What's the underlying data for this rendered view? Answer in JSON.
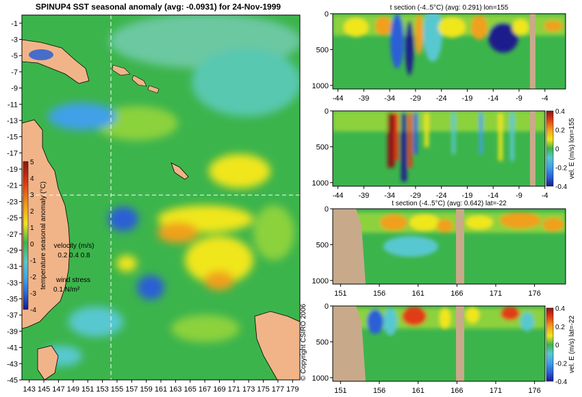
{
  "colors": {
    "land": "#f0b488",
    "section_land": "#c8aa8a",
    "grid": "#ffffff",
    "scale": [
      "#1a1a8c",
      "#2a5fd6",
      "#3fa0e8",
      "#58c8d0",
      "#3cb44c",
      "#8cd23c",
      "#f0e61e",
      "#f0a01e",
      "#e03c14",
      "#8c1414"
    ]
  },
  "chart_data": [
    {
      "type": "heatmap",
      "name": "map",
      "title": "SPINUP4 SST seasonal anomaly (avg: -0.0931) for 24-Nov-1999",
      "x_ticks": [
        "143",
        "145",
        "147",
        "149",
        "151",
        "153",
        "155",
        "157",
        "159",
        "161",
        "163",
        "165",
        "167",
        "169",
        "171",
        "173",
        "175",
        "177",
        "179"
      ],
      "y_ticks": [
        "-1",
        "-3",
        "-5",
        "-7",
        "-9",
        "-11",
        "-13",
        "-15",
        "-17",
        "-19",
        "-21",
        "-23",
        "-25",
        "-27",
        "-29",
        "-31",
        "-33",
        "-35",
        "-37",
        "-39",
        "-41",
        "-43",
        "-45"
      ],
      "xlim": [
        142,
        180
      ],
      "ylim": [
        -45,
        0
      ],
      "crosshair": {
        "lon": 155,
        "lat": -22
      },
      "colorbar": {
        "label": "temperature seasonal anomaly (°C)",
        "ticks": [
          "5",
          "4",
          "3",
          "2",
          "1",
          "0",
          "-1",
          "-2",
          "-3",
          "-4"
        ],
        "range": [
          -4,
          5
        ]
      },
      "legend": {
        "velocity_label": "velocity (m/s)",
        "velocity_values": "0.2 0.4 0.8",
        "wind_label": "wind stress",
        "wind_value": "0.1 N/m²"
      }
    },
    {
      "type": "heatmap",
      "name": "t-section-lon",
      "title": "t section (-4..5°C) (avg: 0.291) lon=155",
      "x_ticks": [
        "-44",
        "-39",
        "-34",
        "-29",
        "-24",
        "-19",
        "-14",
        "-9",
        "-4"
      ],
      "y_ticks": [
        "0",
        "500",
        "1000"
      ],
      "xlim": [
        -45,
        0
      ],
      "ylim": [
        1050,
        0
      ],
      "colorbar": null
    },
    {
      "type": "heatmap",
      "name": "vel-section-lon",
      "title": "",
      "x_ticks": [
        "-44",
        "-39",
        "-34",
        "-29",
        "-24",
        "-19",
        "-14",
        "-9",
        "-4"
      ],
      "y_ticks": [
        "0",
        "500",
        "1000"
      ],
      "xlim": [
        -45,
        0
      ],
      "ylim": [
        1050,
        0
      ],
      "colorbar": {
        "label": "vel. E (m/s) lon=155",
        "ticks": [
          "0.4",
          "0.2",
          "0",
          "-0.2",
          "-0.4"
        ],
        "range": [
          -0.4,
          0.4
        ]
      }
    },
    {
      "type": "heatmap",
      "name": "t-section-lat",
      "title": "t section (-4..5°C) (avg: 0.642) lat=-22",
      "x_ticks": [
        "151",
        "156",
        "161",
        "166",
        "171",
        "176"
      ],
      "y_ticks": [
        "0",
        "500",
        "1000"
      ],
      "xlim": [
        150,
        180
      ],
      "ylim": [
        1050,
        0
      ],
      "colorbar": null
    },
    {
      "type": "heatmap",
      "name": "vel-section-lat",
      "title": "",
      "x_ticks": [
        "151",
        "156",
        "161",
        "166",
        "171",
        "176"
      ],
      "y_ticks": [
        "0",
        "500",
        "1000"
      ],
      "xlim": [
        150,
        180
      ],
      "ylim": [
        1050,
        0
      ],
      "colorbar": {
        "label": "vel. E (m/s) lat=-22",
        "ticks": [
          "0.4",
          "0.2",
          "0",
          "-0.2",
          "-0.4"
        ],
        "range": [
          -0.4,
          0.4
        ]
      }
    }
  ],
  "copyright": "© Copyright CSIRO 2006"
}
